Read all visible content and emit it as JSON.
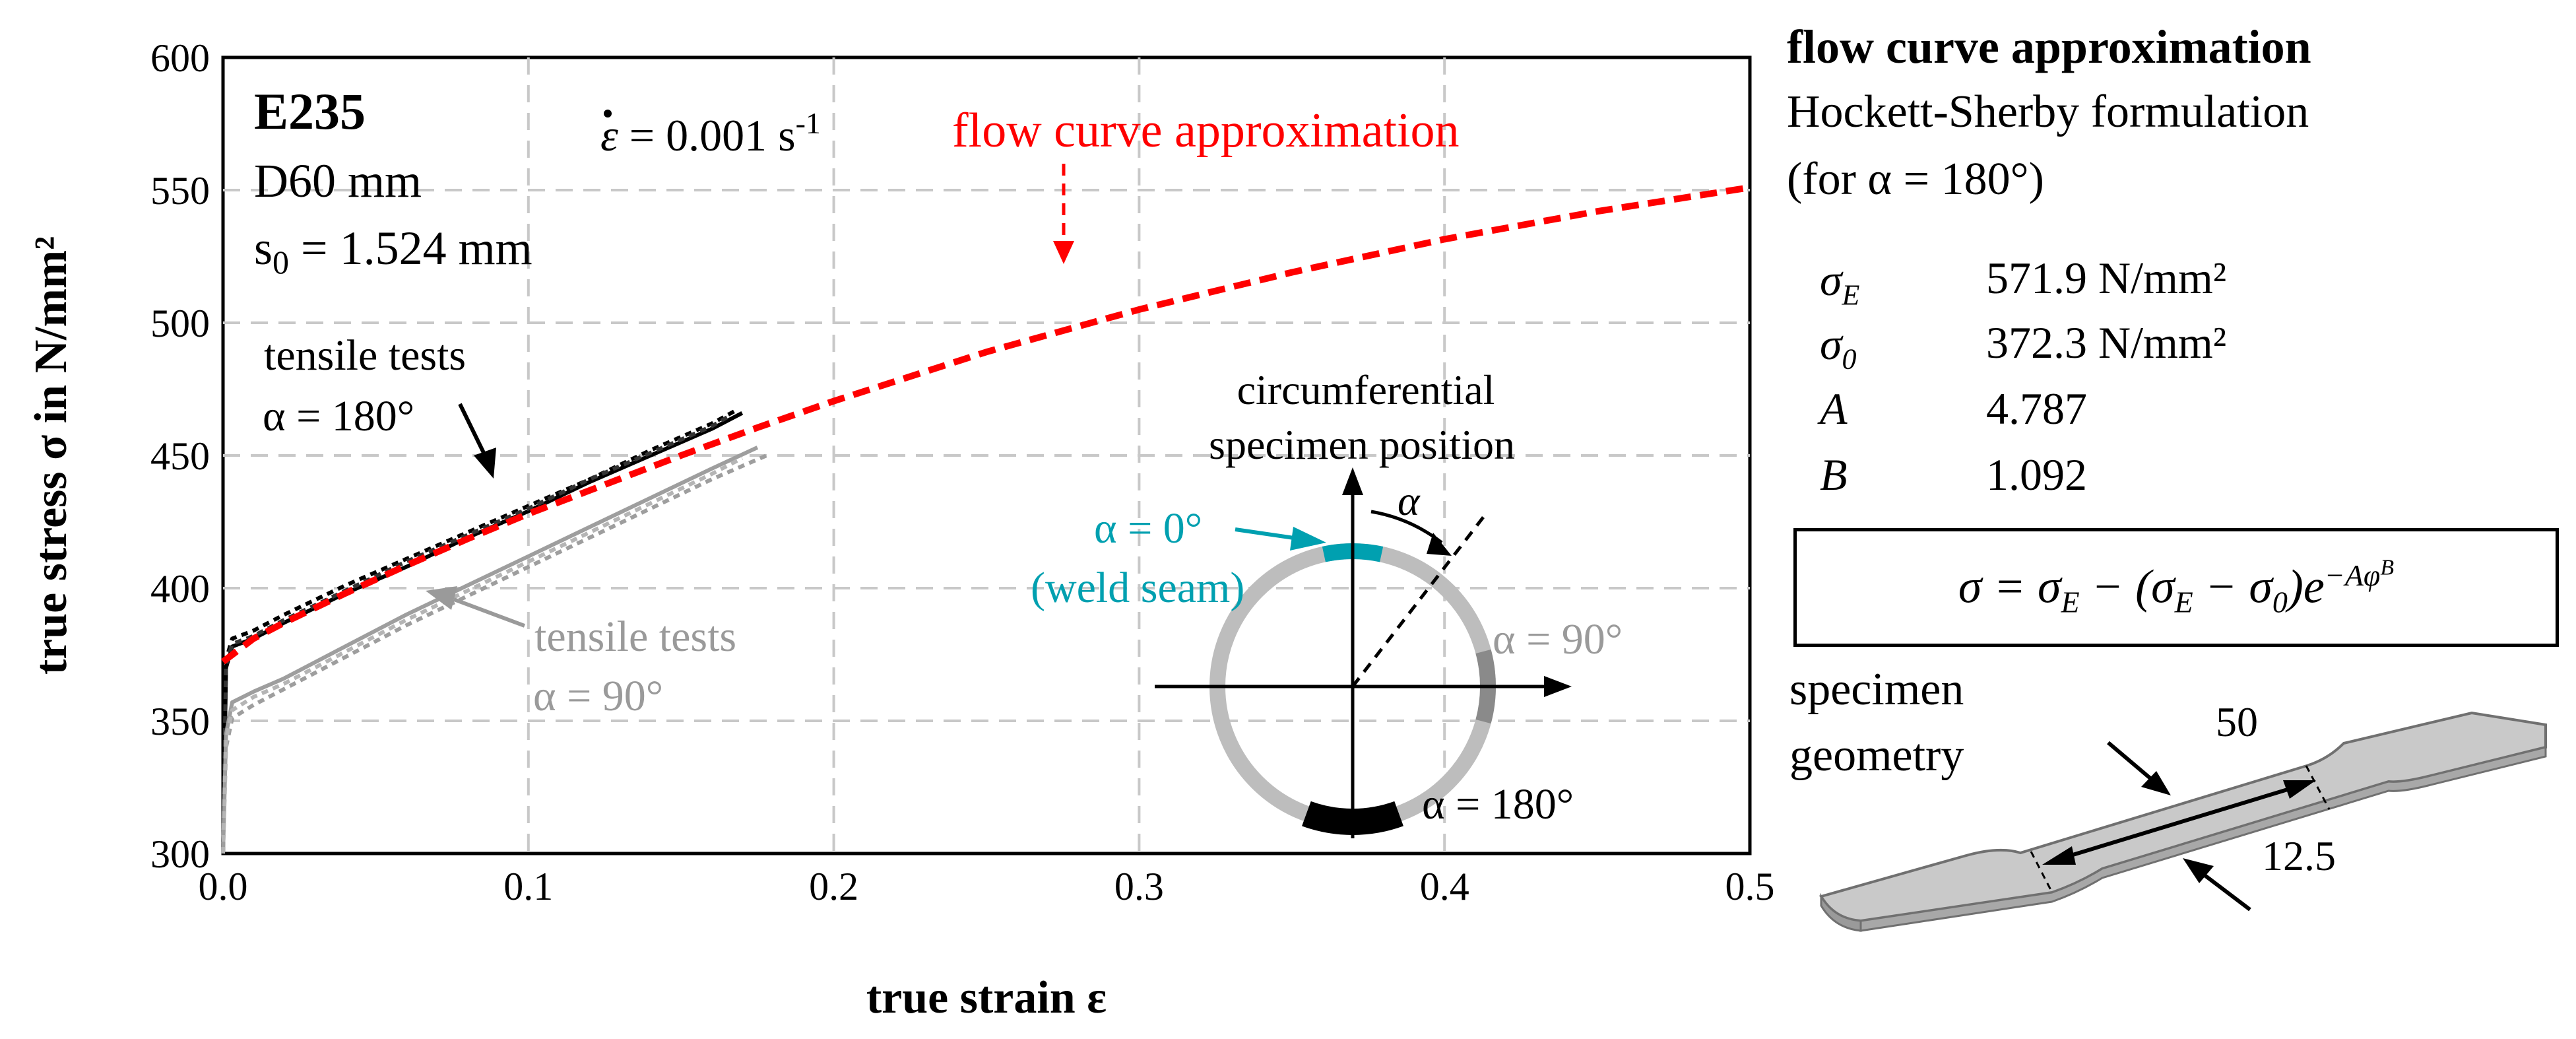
{
  "chart_data": {
    "type": "line",
    "xlabel": "true strain ε",
    "ylabel": "true stress σ in N/mm²",
    "xlim": [
      0,
      0.5
    ],
    "ylim": [
      300,
      600
    ],
    "x_ticks": [
      "0.0",
      "0.1",
      "0.2",
      "0.3",
      "0.4",
      "0.5"
    ],
    "y_ticks": [
      "300",
      "350",
      "400",
      "450",
      "500",
      "550",
      "600"
    ],
    "grid": true,
    "series": [
      {
        "name": "flow curve approximation",
        "color": "#ff0000",
        "dashed": true,
        "x": [
          0.0,
          0.01,
          0.02,
          0.04,
          0.06,
          0.08,
          0.1,
          0.125,
          0.15,
          0.175,
          0.2,
          0.25,
          0.3,
          0.35,
          0.4,
          0.45,
          0.5
        ],
        "y": [
          372.3,
          381,
          387,
          398,
          408.5,
          418.5,
          428,
          439,
          450,
          460.5,
          470.5,
          489,
          505,
          519,
          531.5,
          542,
          551
        ]
      },
      {
        "name": "tensile test α = 180° #1",
        "color": "#000000",
        "dashed": false,
        "x": [
          0.0,
          0.001,
          0.003,
          0.01,
          0.02,
          0.04,
          0.06,
          0.08,
          0.1,
          0.12,
          0.14,
          0.16,
          0.17
        ],
        "y": [
          300,
          370,
          378,
          381,
          387,
          398,
          408,
          419,
          429,
          440,
          450,
          460,
          466
        ]
      },
      {
        "name": "tensile test α = 180° #2",
        "color": "#000000",
        "dashed": true,
        "x": [
          0.0,
          0.001,
          0.003,
          0.01,
          0.02,
          0.04,
          0.06,
          0.08,
          0.1,
          0.12,
          0.14,
          0.16,
          0.168
        ],
        "y": [
          300,
          373,
          381,
          384,
          390,
          401,
          411,
          421,
          431,
          441,
          452,
          462,
          467
        ]
      },
      {
        "name": "tensile test α = 180° #3",
        "color": "#333333",
        "dashed": true,
        "x": [
          0.0,
          0.001,
          0.003,
          0.01,
          0.02,
          0.04,
          0.06,
          0.08,
          0.1,
          0.12,
          0.14,
          0.16,
          0.166
        ],
        "y": [
          300,
          371,
          379,
          382,
          388,
          399,
          410,
          420,
          430,
          441,
          451,
          461,
          465
        ]
      },
      {
        "name": "tensile test α = 90° #1",
        "color": "#9e9e9e",
        "dashed": false,
        "x": [
          0.0,
          0.001,
          0.003,
          0.01,
          0.02,
          0.04,
          0.06,
          0.08,
          0.1,
          0.12,
          0.14,
          0.16,
          0.175
        ],
        "y": [
          300,
          345,
          357,
          361,
          366,
          378,
          390,
          401,
          412,
          423,
          434,
          445,
          453
        ]
      },
      {
        "name": "tensile test α = 90° #2",
        "color": "#9e9e9e",
        "dashed": true,
        "x": [
          0.0,
          0.001,
          0.003,
          0.01,
          0.02,
          0.04,
          0.06,
          0.08,
          0.1,
          0.12,
          0.14,
          0.16,
          0.178
        ],
        "y": [
          300,
          340,
          351,
          356,
          362,
          374,
          386,
          397,
          408,
          419,
          430,
          441,
          450
        ]
      },
      {
        "name": "tensile test α = 90° #3",
        "color": "#b5b5b5",
        "dashed": true,
        "x": [
          0.0,
          0.001,
          0.003,
          0.01,
          0.02,
          0.04,
          0.06,
          0.08,
          0.1,
          0.12,
          0.14,
          0.16,
          0.17
        ],
        "y": [
          300,
          343,
          354,
          359,
          364,
          376,
          388,
          399,
          410,
          421,
          432,
          443,
          449
        ]
      }
    ],
    "annotations": {
      "material": "E235",
      "diameter": "D60 mm",
      "thickness_prefix": "s",
      "thickness_sub": "0",
      "thickness_rest": " = 1.524 mm",
      "strain_rate_prefix": " = 0.001 s",
      "strain_rate_sup": "-1",
      "flow_label": "flow curve approximation",
      "tensile_180_line1": "tensile tests",
      "tensile_180_line2": "α = 180°",
      "tensile_90_line1": "tensile tests",
      "tensile_90_line2": "α = 90°",
      "circ_line1": "circumferential",
      "circ_line2": "specimen position",
      "alpha_symbol": "α",
      "alpha0": "α = 0°",
      "weld_seam": "(weld seam)",
      "alpha90": "α = 90°",
      "alpha180": "α = 180°"
    }
  },
  "panel": {
    "title": "flow curve approximation",
    "subtitle": "Hockett-Sherby formulation",
    "condition": "(for α = 180°)",
    "params": [
      {
        "symbol": "σ",
        "sub": "E",
        "value": "571.9 N/mm²"
      },
      {
        "symbol": "σ",
        "sub": "0",
        "value": "372.3 N/mm²"
      },
      {
        "symbol": "A",
        "sub": "",
        "value": "4.787"
      },
      {
        "symbol": "B",
        "sub": "",
        "value": "1.092"
      }
    ],
    "formula_main": "σ = σ",
    "formula_e1": "E",
    "formula_mid": " − (σ",
    "formula_e2": "E",
    "formula_minus": " − σ",
    "formula_zero": "0",
    "formula_close": ")e",
    "formula_exp": "−Aφ",
    "formula_exp_b": "B",
    "geometry_line1": "specimen",
    "geometry_line2": "geometry",
    "dim_length": "50",
    "dim_width": "12.5"
  },
  "colors": {
    "flow": "#ff0000",
    "weld": "#00a0b0",
    "grey_text": "#9a9a9a"
  }
}
